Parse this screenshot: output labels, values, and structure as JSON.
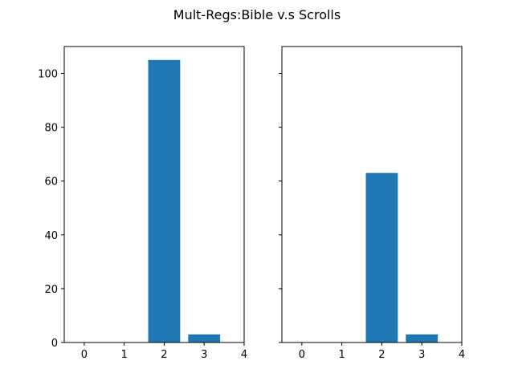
{
  "chart_data": {
    "title": "Mult-Regs:Bible v.s Scrolls",
    "bar_color": "#1f77b4",
    "shared_y": true,
    "x_ticks": [
      "0",
      "1",
      "2",
      "3",
      "4"
    ],
    "y_ticks": [
      "0",
      "20",
      "40",
      "60",
      "80",
      "100"
    ],
    "panels": [
      {
        "type": "bar",
        "x": [
          2,
          3
        ],
        "values": [
          105,
          3
        ],
        "xlim": [
          -0.5,
          4
        ],
        "ylim": [
          0,
          110
        ],
        "grid": false
      },
      {
        "type": "bar",
        "x": [
          2,
          3
        ],
        "values": [
          63,
          3
        ],
        "xlim": [
          -0.5,
          4
        ],
        "ylim": [
          0,
          110
        ],
        "grid": false
      }
    ]
  }
}
